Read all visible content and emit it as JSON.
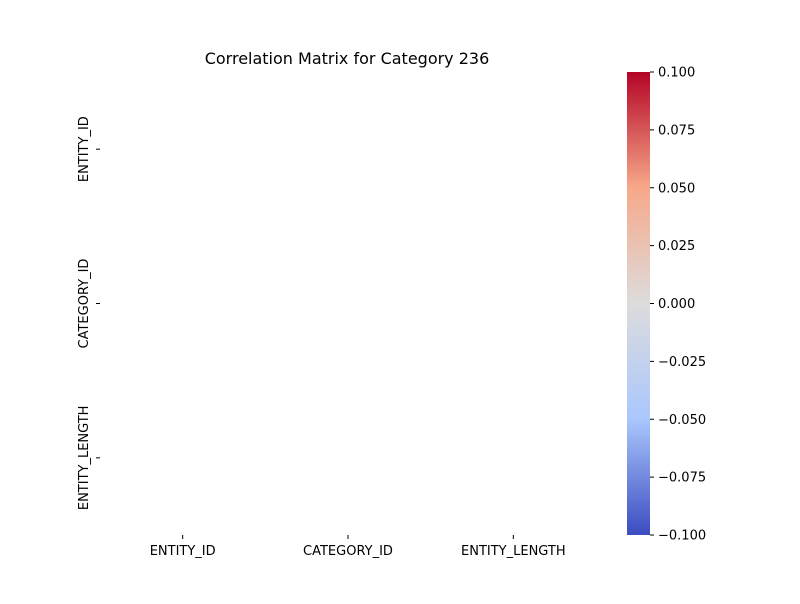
{
  "chart_data": {
    "type": "heatmap",
    "title": "Correlation Matrix for Category 236",
    "xlabel": "",
    "ylabel": "",
    "x_categories": [
      "ENTITY_ID",
      "CATEGORY_ID",
      "ENTITY_LENGTH"
    ],
    "y_categories": [
      "ENTITY_ID",
      "CATEGORY_ID",
      "ENTITY_LENGTH"
    ],
    "values": [
      [
        null,
        null,
        null
      ],
      [
        null,
        null,
        null
      ],
      [
        null,
        null,
        null
      ]
    ],
    "colorbar": {
      "min": -0.1,
      "max": 0.1,
      "ticks": [
        "0.100",
        "0.075",
        "0.050",
        "0.025",
        "0.000",
        "−0.025",
        "−0.050",
        "−0.075",
        "−0.100"
      ],
      "tick_values": [
        0.1,
        0.075,
        0.05,
        0.025,
        0.0,
        -0.025,
        -0.05,
        -0.075,
        -0.1
      ],
      "colormap": "coolwarm",
      "colors": [
        "#b40426",
        "#f7a889",
        "#dddcdc",
        "#aac7fd",
        "#3b4cc0"
      ]
    },
    "grid": false,
    "legend": "none"
  }
}
